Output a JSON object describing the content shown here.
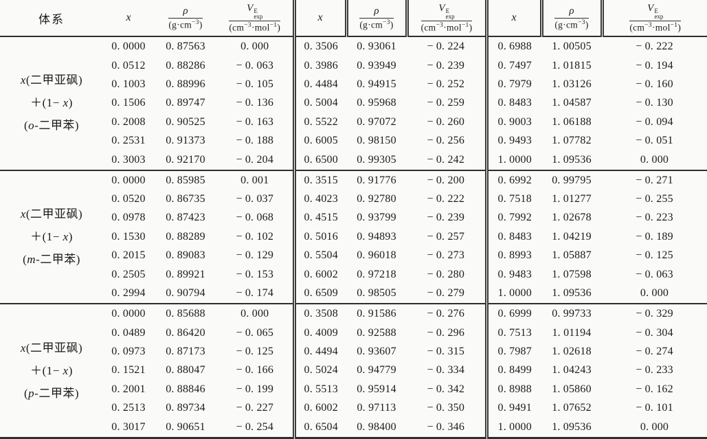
{
  "header": {
    "system": "体系",
    "x": "x",
    "rho_symbol": "ρ",
    "rho_unit_pre": "(g·cm",
    "rho_unit_sup": "−3",
    "rho_unit_post": ")",
    "v_symbol": "V",
    "v_sup": "E",
    "v_sub": "exp",
    "v_unit_pre": "(cm",
    "v_unit_sup1": "−3",
    "v_unit_mid": "·mol",
    "v_unit_sup2": "−1",
    "v_unit_post": ")"
  },
  "sections": [
    {
      "label": {
        "x": "x",
        "line1_rest": "(二甲亚砜)",
        "line2_pre": "＋(1− ",
        "line2_x": "x",
        "line2_post": ")",
        "line3_pre": "(",
        "isomer": "o",
        "line3_post": "-二甲苯)"
      },
      "groups": [
        [
          [
            "0. 0000",
            "0. 87563",
            "0. 000"
          ],
          [
            "0. 0512",
            "0. 88286",
            "− 0. 063"
          ],
          [
            "0. 1003",
            "0. 88996",
            "− 0. 105"
          ],
          [
            "0. 1506",
            "0. 89747",
            "− 0. 136"
          ],
          [
            "0. 2008",
            "0. 90525",
            "− 0. 163"
          ],
          [
            "0. 2531",
            "0. 91373",
            "− 0. 188"
          ],
          [
            "0. 3003",
            "0. 92170",
            "− 0. 204"
          ]
        ],
        [
          [
            "0. 3506",
            "0. 93061",
            "− 0. 224"
          ],
          [
            "0. 3986",
            "0. 93949",
            "− 0. 239"
          ],
          [
            "0. 4484",
            "0. 94915",
            "− 0. 252"
          ],
          [
            "0. 5004",
            "0. 95968",
            "− 0. 259"
          ],
          [
            "0. 5522",
            "0. 97072",
            "− 0. 260"
          ],
          [
            "0. 6005",
            "0. 98150",
            "− 0. 256"
          ],
          [
            "0. 6500",
            "0. 99305",
            "− 0. 242"
          ]
        ],
        [
          [
            "0. 6988",
            "1. 00505",
            "− 0. 222"
          ],
          [
            "0. 7497",
            "1. 01815",
            "− 0. 194"
          ],
          [
            "0. 7979",
            "1. 03126",
            "− 0. 160"
          ],
          [
            "0. 8483",
            "1. 04587",
            "− 0. 130"
          ],
          [
            "0. 9003",
            "1. 06188",
            "− 0. 094"
          ],
          [
            "0. 9493",
            "1. 07782",
            "− 0. 051"
          ],
          [
            "1. 0000",
            "1. 09536",
            "0. 000"
          ]
        ]
      ]
    },
    {
      "label": {
        "x": "x",
        "line1_rest": "(二甲亚砜)",
        "line2_pre": "＋(1− ",
        "line2_x": "x",
        "line2_post": ")",
        "line3_pre": "(",
        "isomer": "m",
        "line3_post": "-二甲苯)"
      },
      "groups": [
        [
          [
            "0. 0000",
            "0. 85985",
            "0. 001"
          ],
          [
            "0. 0520",
            "0. 86735",
            "− 0. 037"
          ],
          [
            "0. 0978",
            "0. 87423",
            "− 0. 068"
          ],
          [
            "0. 1530",
            "0. 88289",
            "− 0. 102"
          ],
          [
            "0. 2015",
            "0. 89083",
            "− 0. 129"
          ],
          [
            "0. 2505",
            "0. 89921",
            "− 0. 153"
          ],
          [
            "0. 2994",
            "0. 90794",
            "− 0. 174"
          ]
        ],
        [
          [
            "0. 3515",
            "0. 91776",
            "− 0. 200"
          ],
          [
            "0. 4023",
            "0. 92780",
            "− 0. 222"
          ],
          [
            "0. 4515",
            "0. 93799",
            "− 0. 239"
          ],
          [
            "0. 5016",
            "0. 94893",
            "− 0. 257"
          ],
          [
            "0. 5504",
            "0. 96018",
            "− 0. 273"
          ],
          [
            "0. 6002",
            "0. 97218",
            "− 0. 280"
          ],
          [
            "0. 6509",
            "0. 98505",
            "− 0. 279"
          ]
        ],
        [
          [
            "0. 6992",
            "0. 99795",
            "− 0. 271"
          ],
          [
            "0. 7518",
            "1. 01277",
            "− 0. 255"
          ],
          [
            "0. 7992",
            "1. 02678",
            "− 0. 223"
          ],
          [
            "0. 8483",
            "1. 04219",
            "− 0. 189"
          ],
          [
            "0. 8993",
            "1. 05887",
            "− 0. 125"
          ],
          [
            "0. 9483",
            "1. 07598",
            "− 0. 063"
          ],
          [
            "1. 0000",
            "1. 09536",
            "0. 000"
          ]
        ]
      ]
    },
    {
      "label": {
        "x": "x",
        "line1_rest": "(二甲亚砜)",
        "line2_pre": "＋(1− ",
        "line2_x": "x",
        "line2_post": ")",
        "line3_pre": "(",
        "isomer": "p",
        "line3_post": "-二甲苯)"
      },
      "groups": [
        [
          [
            "0. 0000",
            "0. 85688",
            "0. 000"
          ],
          [
            "0. 0489",
            "0. 86420",
            "− 0. 065"
          ],
          [
            "0. 0973",
            "0. 87173",
            "− 0. 125"
          ],
          [
            "0. 1521",
            "0. 88047",
            "− 0. 166"
          ],
          [
            "0. 2001",
            "0. 88846",
            "− 0. 199"
          ],
          [
            "0. 2513",
            "0. 89734",
            "− 0. 227"
          ],
          [
            "0. 3017",
            "0. 90651",
            "− 0. 254"
          ]
        ],
        [
          [
            "0. 3508",
            "0. 91586",
            "− 0. 276"
          ],
          [
            "0. 4009",
            "0. 92588",
            "− 0. 296"
          ],
          [
            "0. 4494",
            "0. 93607",
            "− 0. 315"
          ],
          [
            "0. 5024",
            "0. 94779",
            "− 0. 334"
          ],
          [
            "0. 5513",
            "0. 95914",
            "− 0. 342"
          ],
          [
            "0. 6002",
            "0. 97113",
            "− 0. 350"
          ],
          [
            "0. 6504",
            "0. 98400",
            "− 0. 346"
          ]
        ],
        [
          [
            "0. 6999",
            "0. 99733",
            "− 0. 329"
          ],
          [
            "0. 7513",
            "1. 01194",
            "− 0. 304"
          ],
          [
            "0. 7987",
            "1. 02618",
            "− 0. 274"
          ],
          [
            "0. 8499",
            "1. 04243",
            "− 0. 233"
          ],
          [
            "0. 8988",
            "1. 05860",
            "− 0. 162"
          ],
          [
            "0. 9491",
            "1. 07652",
            "− 0. 101"
          ],
          [
            "1. 0000",
            "1. 09536",
            "0. 000"
          ]
        ]
      ]
    }
  ]
}
